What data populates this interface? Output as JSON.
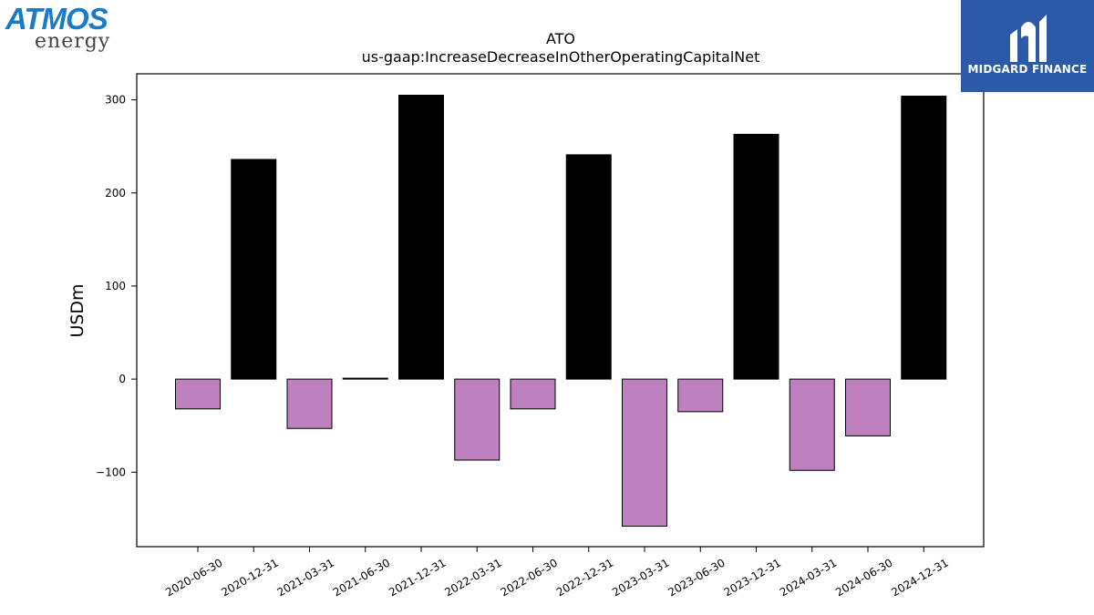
{
  "logos": {
    "left": {
      "word1": "ATMOS",
      "word2": "energy",
      "color": "#1a7bc6"
    },
    "right": {
      "text": "MIDGARD FINANCE",
      "background": "#2d5aa8"
    }
  },
  "chart_data": {
    "type": "bar",
    "title": "ATO",
    "subtitle": "us-gaap:IncreaseDecreaseInOtherOperatingCapitalNet",
    "xlabel": "",
    "ylabel": "USDm",
    "ylim": [
      -180,
      328
    ],
    "yticks": [
      -100,
      0,
      100,
      200,
      300
    ],
    "ytick_labels": [
      "−100",
      "0",
      "100",
      "200",
      "300"
    ],
    "grid": false,
    "legend": "none",
    "colors": {
      "positive": "#000000",
      "negative": "#bf80bf"
    },
    "categories": [
      "2020-06-30",
      "2020-12-31",
      "2021-03-31",
      "2021-06-30",
      "2021-12-31",
      "2022-03-31",
      "2022-06-30",
      "2022-12-31",
      "2023-03-31",
      "2023-06-30",
      "2023-12-31",
      "2024-03-31",
      "2024-06-30",
      "2024-12-31"
    ],
    "values": [
      -32,
      236,
      -53,
      1,
      305,
      -87,
      -32,
      241,
      -158,
      -35,
      263,
      -98,
      -61,
      304
    ]
  }
}
